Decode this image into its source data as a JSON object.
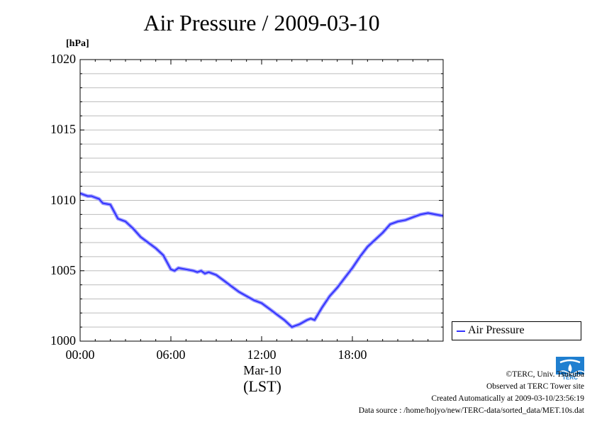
{
  "chart_data": {
    "type": "line",
    "title": "Air Pressure / 2009-03-10",
    "ylabel": "[hPa]",
    "xlabel": "(LST)",
    "x_date_label": "Mar-10",
    "ylim": [
      1000,
      1020
    ],
    "xlim_hours": [
      0,
      24
    ],
    "y_ticks": [
      "1000",
      "1005",
      "1010",
      "1015",
      "1020"
    ],
    "x_ticks": [
      "00:00",
      "06:00",
      "12:00",
      "18:00"
    ],
    "grid": true,
    "legend_position": "right, outside plot",
    "series": [
      {
        "name": "Air Pressure",
        "color": "#3333ff",
        "x_hours": [
          0.0,
          0.25,
          0.5,
          0.75,
          1.0,
          1.25,
          1.5,
          2.0,
          2.25,
          2.5,
          3.0,
          3.5,
          4.0,
          4.5,
          5.0,
          5.5,
          6.0,
          6.25,
          6.5,
          7.0,
          7.5,
          7.75,
          8.0,
          8.25,
          8.5,
          9.0,
          9.5,
          10.0,
          10.5,
          11.0,
          11.5,
          12.0,
          12.5,
          13.0,
          13.5,
          14.0,
          14.5,
          15.0,
          15.25,
          15.5,
          16.0,
          16.5,
          17.0,
          17.5,
          18.0,
          18.5,
          19.0,
          19.5,
          20.0,
          20.5,
          21.0,
          21.5,
          22.0,
          22.5,
          23.0,
          23.5,
          24.0
        ],
        "values": [
          1010.5,
          1010.4,
          1010.3,
          1010.3,
          1010.2,
          1010.1,
          1009.8,
          1009.7,
          1009.2,
          1008.7,
          1008.5,
          1008.0,
          1007.4,
          1007.0,
          1006.6,
          1006.1,
          1005.1,
          1005.0,
          1005.2,
          1005.1,
          1005.0,
          1004.9,
          1005.0,
          1004.8,
          1004.9,
          1004.7,
          1004.3,
          1003.9,
          1003.5,
          1003.2,
          1002.9,
          1002.7,
          1002.3,
          1001.9,
          1001.5,
          1001.0,
          1001.2,
          1001.5,
          1001.6,
          1001.5,
          1002.4,
          1003.2,
          1003.8,
          1004.5,
          1005.2,
          1006.0,
          1006.7,
          1007.2,
          1007.7,
          1008.3,
          1008.5,
          1008.6,
          1008.8,
          1009.0,
          1009.1,
          1009.0,
          1008.9
        ]
      }
    ]
  },
  "legend": {
    "label": "Air Pressure"
  },
  "credits": {
    "copyright": "©TERC, Univ. Tsukuba",
    "site": "Observed at TERC Tower site",
    "created": "Created Automatically at 2009-03-10/23:56:19",
    "source": "Data source : /home/hojyo/new/TERC-data/sorted_data/MET.10s.dat"
  },
  "logo": {
    "text": "TERC",
    "color": "#1f7fd0"
  }
}
